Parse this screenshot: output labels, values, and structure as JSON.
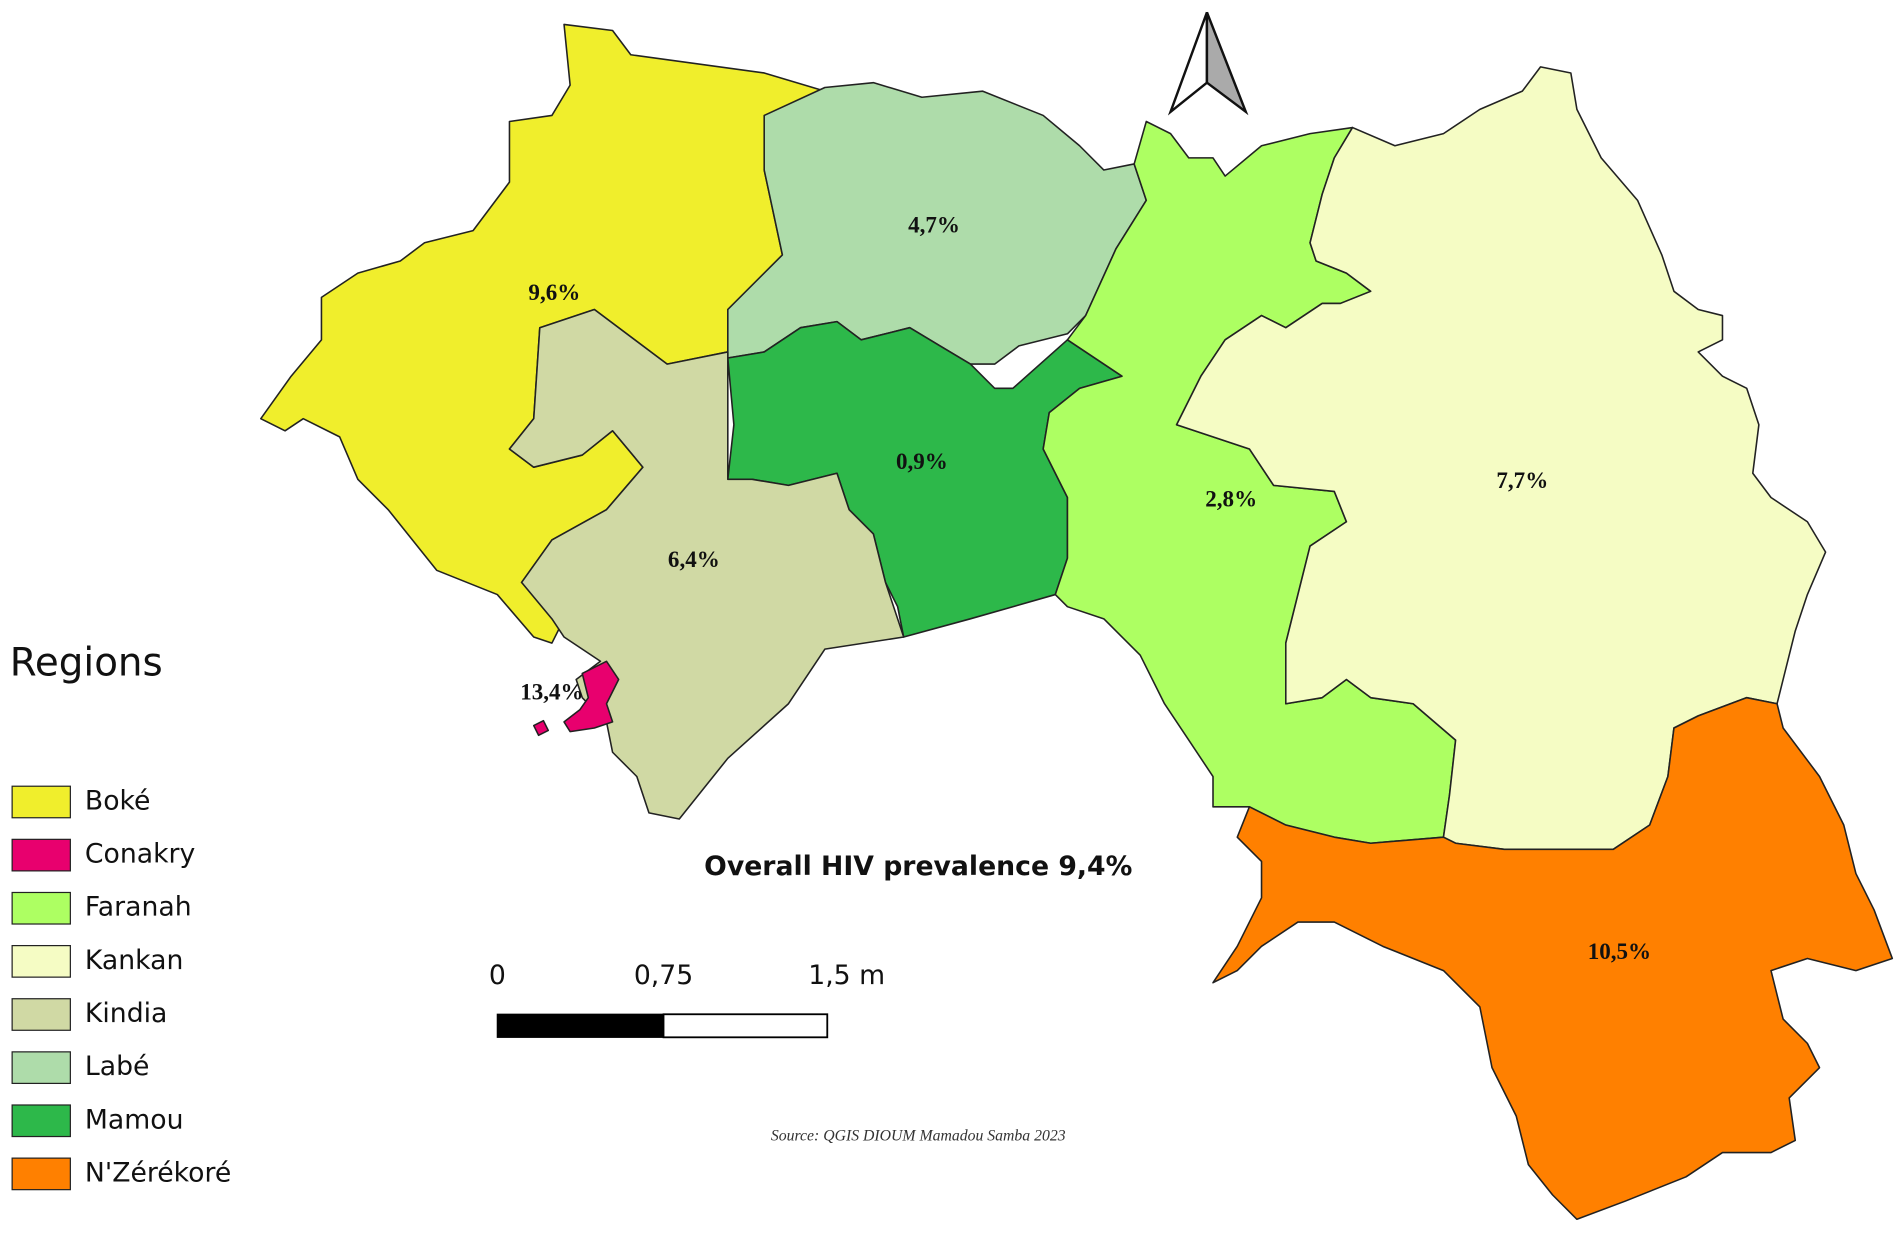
{
  "map": {
    "title": "Overall HIV prevalence 9,4%",
    "legend_title": "Regions",
    "regions": [
      {
        "name": "Boké",
        "color": "#f0ee2c",
        "label": "9,6%"
      },
      {
        "name": "Conakry",
        "color": "#e8006e",
        "label": "13,4%"
      },
      {
        "name": "Faranah",
        "color": "#adff62",
        "label": "2,8%"
      },
      {
        "name": "Kankan",
        "color": "#f5fcc4",
        "label": "7,7%"
      },
      {
        "name": "Kindia",
        "color": "#d0d9a4",
        "label": "6,4%"
      },
      {
        "name": "Labé",
        "color": "#aedcaa",
        "label": "4,7%"
      },
      {
        "name": "Mamou",
        "color": "#2db84a",
        "label": "0,9%"
      },
      {
        "name": "N'Zérékoré",
        "color": "#ff8000",
        "label": "10,5%"
      }
    ],
    "scale_bar": {
      "labels": [
        "0",
        "0,75",
        "1,5 m"
      ]
    },
    "source": "Source: QGIS DIOUM Mamadou Samba 2023"
  }
}
